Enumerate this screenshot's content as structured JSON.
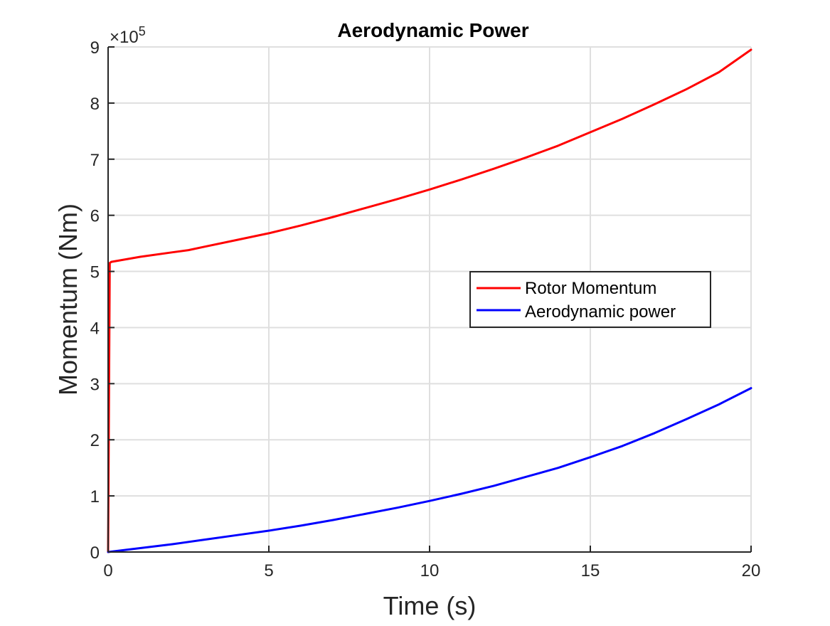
{
  "chart_data": {
    "type": "line",
    "title": "Aerodynamic Power",
    "xlabel": "Time (s)",
    "ylabel": "Momentum (Nm)",
    "xlim": [
      0,
      20
    ],
    "ylim": [
      0,
      9
    ],
    "xticks": [
      0,
      5,
      10,
      15,
      20
    ],
    "yticks": [
      0,
      1,
      2,
      3,
      4,
      5,
      6,
      7,
      8,
      9
    ],
    "y_exponent": {
      "base": "×10",
      "power": "5"
    },
    "grid": true,
    "legend_position": "center-right",
    "series": [
      {
        "name": "Rotor Momentum",
        "color": "#ff0000",
        "x": [
          0,
          0.05,
          0.1,
          1,
          2,
          2.5,
          3,
          4,
          5,
          6,
          7,
          8,
          9,
          10,
          11,
          12,
          13,
          14,
          15,
          16,
          17,
          18,
          19,
          20
        ],
        "y": [
          0,
          5.15,
          5.17,
          5.26,
          5.34,
          5.38,
          5.44,
          5.56,
          5.68,
          5.82,
          5.97,
          6.13,
          6.29,
          6.46,
          6.64,
          6.83,
          7.03,
          7.24,
          7.48,
          7.72,
          7.98,
          8.25,
          8.55,
          8.95
        ]
      },
      {
        "name": "Aerodynamic power",
        "color": "#0000ff",
        "x": [
          0,
          1,
          2,
          3,
          4,
          5,
          6,
          7,
          8,
          9,
          10,
          11,
          12,
          13,
          14,
          15,
          16,
          17,
          18,
          19,
          20
        ],
        "y": [
          0,
          0.07,
          0.14,
          0.22,
          0.3,
          0.38,
          0.47,
          0.57,
          0.68,
          0.79,
          0.91,
          1.04,
          1.18,
          1.34,
          1.5,
          1.69,
          1.89,
          2.12,
          2.37,
          2.63,
          2.92
        ]
      }
    ]
  }
}
